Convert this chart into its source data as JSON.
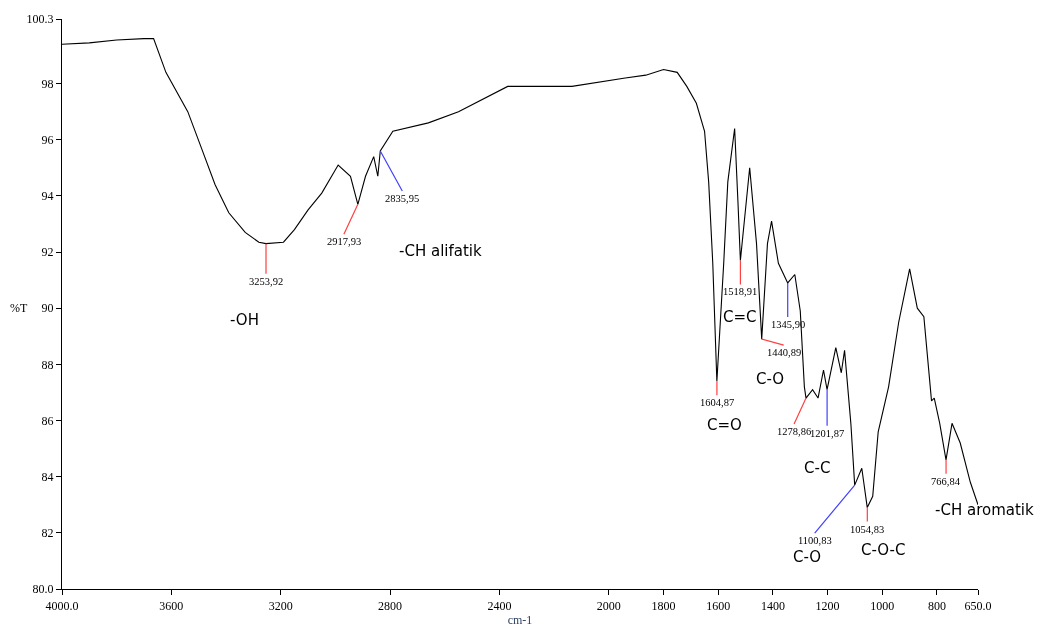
{
  "chart_data": {
    "type": "line",
    "xlabel": "cm-1",
    "ylabel": "%T",
    "xlim": [
      4000,
      650
    ],
    "ylim": [
      80,
      100.3
    ],
    "xticks": [
      {
        "value": 4000,
        "label": "4000.0"
      },
      3600,
      3200,
      2800,
      2400,
      2000,
      1800,
      1600,
      1400,
      1200,
      1000,
      800,
      {
        "value": 650,
        "label": "650.0"
      }
    ],
    "yticks": [
      {
        "value": 80,
        "label": "80.0"
      },
      82,
      84,
      86,
      88,
      90,
      92,
      94,
      96,
      98,
      100.3
    ],
    "line_style": "solid",
    "x": [
      4000,
      3900,
      3800,
      3700,
      3665,
      3620,
      3540,
      3490,
      3440,
      3390,
      3330,
      3280,
      3254,
      3190,
      3150,
      3100,
      3050,
      2990,
      2945,
      2918,
      2890,
      2860,
      2845,
      2836,
      2790,
      2660,
      2550,
      2370,
      2135,
      1940,
      1865,
      1800,
      1750,
      1715,
      1680,
      1650,
      1635,
      1620,
      1605,
      1580,
      1565,
      1540,
      1528,
      1519,
      1485,
      1460,
      1441,
      1420,
      1405,
      1380,
      1346,
      1320,
      1300,
      1285,
      1279,
      1255,
      1235,
      1215,
      1202,
      1170,
      1150,
      1138,
      1115,
      1101,
      1075,
      1055,
      1035,
      1015,
      977,
      940,
      900,
      872,
      848,
      820,
      810,
      790,
      767,
      745,
      715,
      678,
      650
    ],
    "series": [
      {
        "color": "#000000",
        "values": [
          99.4,
          99.45,
          99.55,
          99.6,
          99.6,
          98.4,
          97.0,
          95.7,
          94.4,
          93.4,
          92.7,
          92.35,
          92.3,
          92.35,
          92.8,
          93.5,
          94.1,
          95.1,
          94.7,
          93.7,
          94.7,
          95.4,
          94.7,
          95.6,
          96.3,
          96.6,
          97.0,
          97.9,
          97.9,
          98.2,
          98.3,
          98.5,
          98.4,
          97.9,
          97.3,
          96.3,
          94.5,
          91.6,
          87.4,
          91.6,
          94.5,
          96.4,
          93.8,
          91.7,
          95.0,
          92.3,
          88.9,
          92.3,
          93.1,
          91.6,
          90.9,
          91.2,
          89.9,
          87.2,
          86.8,
          87.1,
          86.8,
          87.8,
          87.1,
          88.6,
          87.7,
          88.5,
          85.9,
          83.7,
          84.3,
          82.9,
          83.3,
          85.6,
          87.2,
          89.5,
          91.4,
          90.0,
          89.7,
          86.7,
          86.8,
          85.9,
          84.6,
          85.9,
          85.2,
          83.8,
          83.0
        ]
      }
    ],
    "annotations": [
      {
        "text": "3253,92",
        "x": 3253.92,
        "y": 92.3
      },
      {
        "text": "2917,93",
        "x": 2917.93,
        "y": 93.7
      },
      {
        "text": "2835,95",
        "x": 2835.95,
        "y": 95.6
      },
      {
        "text": "1604,87",
        "x": 1604.87,
        "y": 87.4
      },
      {
        "text": "1518,91",
        "x": 1518.91,
        "y": 91.7
      },
      {
        "text": "1440,89",
        "x": 1440.89,
        "y": 88.9
      },
      {
        "text": "1345,90",
        "x": 1345.9,
        "y": 90.9
      },
      {
        "text": "1278,86",
        "x": 1278.86,
        "y": 86.8
      },
      {
        "text": "1201,87",
        "x": 1201.87,
        "y": 87.1
      },
      {
        "text": "1100,83",
        "x": 1100.83,
        "y": 83.7
      },
      {
        "text": "1054,83",
        "x": 1054.83,
        "y": 82.9
      },
      {
        "text": "766,84",
        "x": 766.84,
        "y": 84.6
      },
      "-OH",
      "-CH alifatik",
      "C=C",
      "C=O",
      "C-O",
      "C-C",
      "C-O",
      "C-O-C",
      "-CH aromatik"
    ]
  }
}
